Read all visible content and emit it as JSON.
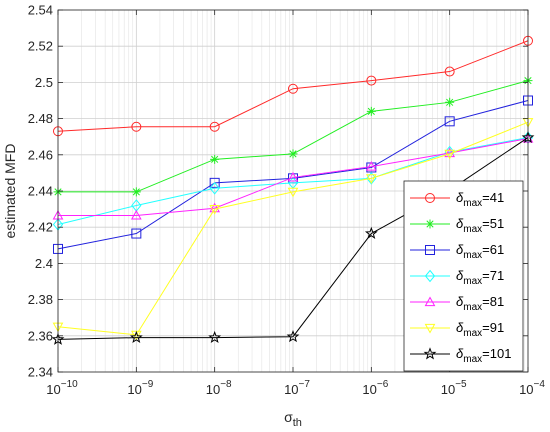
{
  "chart_data": {
    "type": "line",
    "xscale": "log",
    "x": [
      1e-10,
      1e-09,
      1e-08,
      1e-07,
      1e-06,
      1e-05,
      0.0001
    ],
    "x_tick_labels": [
      {
        "base": "10",
        "exp": "−10"
      },
      {
        "base": "10",
        "exp": "−9"
      },
      {
        "base": "10",
        "exp": "−8"
      },
      {
        "base": "10",
        "exp": "−7"
      },
      {
        "base": "10",
        "exp": "−6"
      },
      {
        "base": "10",
        "exp": "−5"
      },
      {
        "base": "10",
        "exp": "−4"
      }
    ],
    "xlim": [
      1e-10,
      0.0001
    ],
    "ylim": [
      2.34,
      2.54
    ],
    "y_ticks": [
      2.34,
      2.36,
      2.38,
      2.4,
      2.42,
      2.44,
      2.46,
      2.48,
      2.5,
      2.52,
      2.54
    ],
    "y_tick_labels": [
      "2.34",
      "2.36",
      "2.38",
      "2.4",
      "2.42",
      "2.44",
      "2.46",
      "2.48",
      "2.5",
      "2.52",
      "2.54"
    ],
    "xlabel": {
      "main": "σ",
      "sub": "th"
    },
    "ylabel": "estimated MFD",
    "grid": true,
    "legend_position": "bottom-right",
    "series": [
      {
        "name": "δmax=41",
        "label_main": "δ",
        "label_sub": "max",
        "label_value": "=41",
        "color": "#ff2a2a",
        "marker": "circle",
        "values": [
          2.473,
          2.4755,
          2.4755,
          2.4965,
          2.501,
          2.506,
          2.523
        ]
      },
      {
        "name": "δmax=51",
        "label_main": "δ",
        "label_sub": "max",
        "label_value": "=51",
        "color": "#22ee22",
        "marker": "asterisk",
        "values": [
          2.4395,
          2.4395,
          2.4575,
          2.4605,
          2.484,
          2.489,
          2.501
        ]
      },
      {
        "name": "δmax=61",
        "label_main": "δ",
        "label_sub": "max",
        "label_value": "=61",
        "color": "#2222dd",
        "marker": "square",
        "values": [
          2.408,
          2.4165,
          2.4445,
          2.447,
          2.453,
          2.4785,
          2.49
        ]
      },
      {
        "name": "δmax=71",
        "label_main": "δ",
        "label_sub": "max",
        "label_value": "=71",
        "color": "#22ffff",
        "marker": "diamond",
        "values": [
          2.4215,
          2.432,
          2.4415,
          2.4445,
          2.447,
          2.4615,
          2.4695
        ]
      },
      {
        "name": "δmax=81",
        "label_main": "δ",
        "label_sub": "max",
        "label_value": "=81",
        "color": "#ff22ff",
        "marker": "triangle-up",
        "values": [
          2.4265,
          2.4265,
          2.4305,
          2.4475,
          2.4535,
          2.461,
          2.469
        ]
      },
      {
        "name": "δmax=91",
        "label_main": "δ",
        "label_sub": "max",
        "label_value": "=91",
        "color": "#ffff22",
        "marker": "triangle-down",
        "values": [
          2.365,
          2.3605,
          2.43,
          2.4395,
          2.447,
          2.4605,
          2.478
        ]
      },
      {
        "name": "δmax=101",
        "label_main": "δ",
        "label_sub": "max",
        "label_value": "=101",
        "color": "#000000",
        "marker": "star",
        "values": [
          2.358,
          2.359,
          2.359,
          2.3595,
          2.4165,
          2.4405,
          2.4695
        ]
      }
    ]
  }
}
